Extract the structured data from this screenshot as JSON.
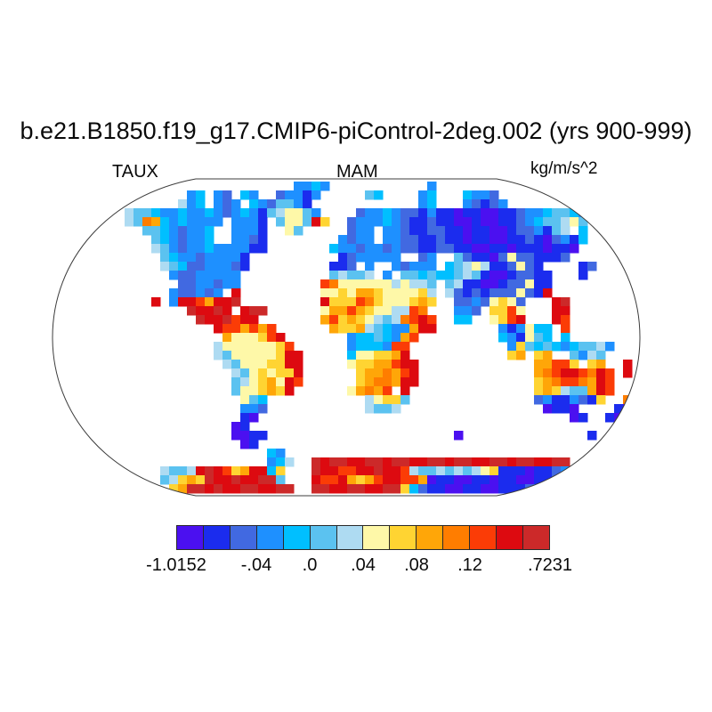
{
  "title": "b.e21.B1850.f19_g17.CMIP6-piControl-2deg.002 (yrs 900-999)",
  "labels": {
    "variable": "TAUX",
    "season": "MAM",
    "units": "kg/m/s^2"
  },
  "chart_data": {
    "type": "heatmap",
    "projection": "robinson",
    "variable": "TAUX",
    "season": "MAM",
    "units": "kg/m/s^2",
    "title": "b.e21.B1850.f19_g17.CMIP6-piControl-2deg.002 (yrs 900-999)",
    "data_min": -1.0152,
    "data_max": 0.7231,
    "legend_position": "bottom",
    "colorbar": {
      "colors": [
        "#4B10F0",
        "#1B2CEE",
        "#4169E1",
        "#1E90FF",
        "#00BFFF",
        "#5BC2F0",
        "#AEDBF2",
        "#FEF8A8",
        "#FFD432",
        "#FFA608",
        "#FF7D00",
        "#FB3C06",
        "#DD0A10",
        "#CC2929"
      ],
      "tick_labels": [
        {
          "label": "-1.0152",
          "edge": 0
        },
        {
          "label": "-.04",
          "edge": 3
        },
        {
          "label": ".0",
          "edge": 5
        },
        {
          "label": ".04",
          "edge": 7
        },
        {
          "label": ".08",
          "edge": 9
        },
        {
          "label": ".12",
          "edge": 11
        },
        {
          "label": ".7231",
          "edge": 14
        }
      ]
    },
    "palette": {
      "a": "#4B10F0",
      "b": "#1B2CEE",
      "c": "#4169E1",
      "d": "#1E90FF",
      "e": "#00BFFF",
      "f": "#5BC2F0",
      "g": "#AEDBF2",
      "h": "#FEF8A8",
      "i": "#FFD432",
      "j": "#FFA608",
      "k": "#FF7D00",
      "l": "#FB3C06",
      "m": "#DD0A10",
      "n": "#CC2929"
    },
    "raster_rows": [
      "..........................dded...........d.....................",
      "..............de.dc.ed..cddbd.....fe....de...eddc...............",
      ".............gde.dcd.edcffdb............de...dcbcd..............",
      ".......gffeddeddedcdedbfghhfd....cddedccbdbbabbaabbcddeffedd....",
      ".......gfkjededddd.dddb.fhhfmi..cdddedcbbcbbaabaabbcdeffghf.....",
      ".........ffedcdde..dddb..hf.....cdd.ddcbbccbbabbaabccdbfg.e.....",
      "..........fedcdde..ddcb........dcdd.ddccbbcbbabbaabbcbacdbe.....",
      "..........gfdcddeddddbb.......eddcddcdccbbccbbaabbabbbabba......",
      "...........feddcddddb..........bcddddd..cd..fcbbachccbbbc.......",
      "...........gfeccdddcb.........bbc.d..dcddd.efghgbbchcb....bc....",
      "............dccddddd..........fgffg.d.ffefeefgfbaabccbb...b.....",
      ".............ccddcdd.........lkhhhhhhghggf.fgbbaabcchbb.........",
      "............dccdcd.m.........hhihjjihhhhig.gcbcbccchcbm.........",
      "..........m.dmmljmmn.........miiilkihhhiji..ccdchihc...mn.......",
      "..............nmmnm.mnn......hjjljihhgglk...ddc.iilh...mm.......",
      "...............nmmnlmm.......jlijihgfgklml..ee..hilm...ml.......",
      ".................mlljljl......jiijgfeddjmm.......dbdhee.l.......",
      "..................jhhhilm.......deefedjl.........edbhfe.e......",
      ".................ghhhhhhil......deeedll...........difefedeffgd.",
      ".................gfhhhhhimm.....ehhiijm...........ij.ij..fdgf..",
      "..................gfhhhiimm.....hiijjlmm.............jjlli.ij..m",
      "...................gfhihiim......ijjkjlm.............jklmmlkml.m",
      "...................fghijhml......ijkkjmm.............ijkllkjml..",
      "...................fhhijim......hjkjl.m..............ijigffjml..",
      "....................hfe...........ghiif..............cdbbdcbi..k",
      "....................ddc...........gffg................abba....ba",
      "....................ba...................................ab..bab",
      "...................ab.........................................ab.",
      "...................aabb.....................a..............b....",
      "....................ab..........................................",
      ".......................ed.......................................",
      ".......................deg..nmnnmmnnmnnmmnnmnnmmnnmnnmmnn......",
      "...........gffgmnmlijmmei...nmmllmmnmmlgffgfgfghibbbabbcd.......",
      "...........fgijinmmnmmnnf...mllmjijlmmlljabbaabbabbaabbcde......",
      "............ijnnmnmmnnmmnn..nnmmnnmmnniecbbaabbaabbbcde.........",
      "................................................................"
    ]
  }
}
